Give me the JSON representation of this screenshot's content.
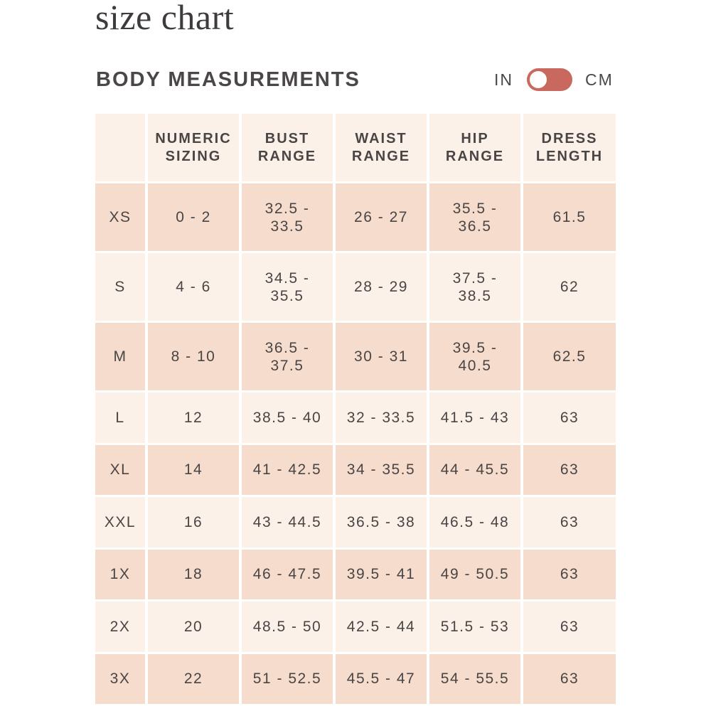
{
  "title": "size chart",
  "section_title": "BODY MEASUREMENTS",
  "unit_toggle": {
    "left_label": "IN",
    "right_label": "CM",
    "accent_color": "#c9685f"
  },
  "table": {
    "headers": [
      "",
      "NUMERIC\nSIZING",
      "BUST\nRANGE",
      "WAIST\nRANGE",
      "HIP\nRANGE",
      "DRESS\nLENGTH"
    ],
    "rows": [
      [
        "XS",
        "0 - 2",
        "32.5 -\n33.5",
        "26 - 27",
        "35.5 -\n36.5",
        "61.5"
      ],
      [
        "S",
        "4 - 6",
        "34.5 -\n35.5",
        "28 - 29",
        "37.5 -\n38.5",
        "62"
      ],
      [
        "M",
        "8 - 10",
        "36.5 -\n37.5",
        "30 - 31",
        "39.5 -\n40.5",
        "62.5"
      ],
      [
        "L",
        "12",
        "38.5 - 40",
        "32 - 33.5",
        "41.5 - 43",
        "63"
      ],
      [
        "XL",
        "14",
        "41 - 42.5",
        "34 - 35.5",
        "44 - 45.5",
        "63"
      ],
      [
        "XXL",
        "16",
        "43 - 44.5",
        "36.5 - 38",
        "46.5 - 48",
        "63"
      ],
      [
        "1X",
        "18",
        "46 - 47.5",
        "39.5 - 41",
        "49 - 50.5",
        "63"
      ],
      [
        "2X",
        "20",
        "48.5 - 50",
        "42.5 - 44",
        "51.5 - 53",
        "63"
      ],
      [
        "3X",
        "22",
        "51 - 52.5",
        "45.5 - 47",
        "54 - 55.5",
        "63"
      ]
    ]
  },
  "colors": {
    "header_bg": "#fcf1e8",
    "row_dark": "#f5dccd",
    "row_light": "#fcf1e8",
    "text": "#4a4545"
  }
}
